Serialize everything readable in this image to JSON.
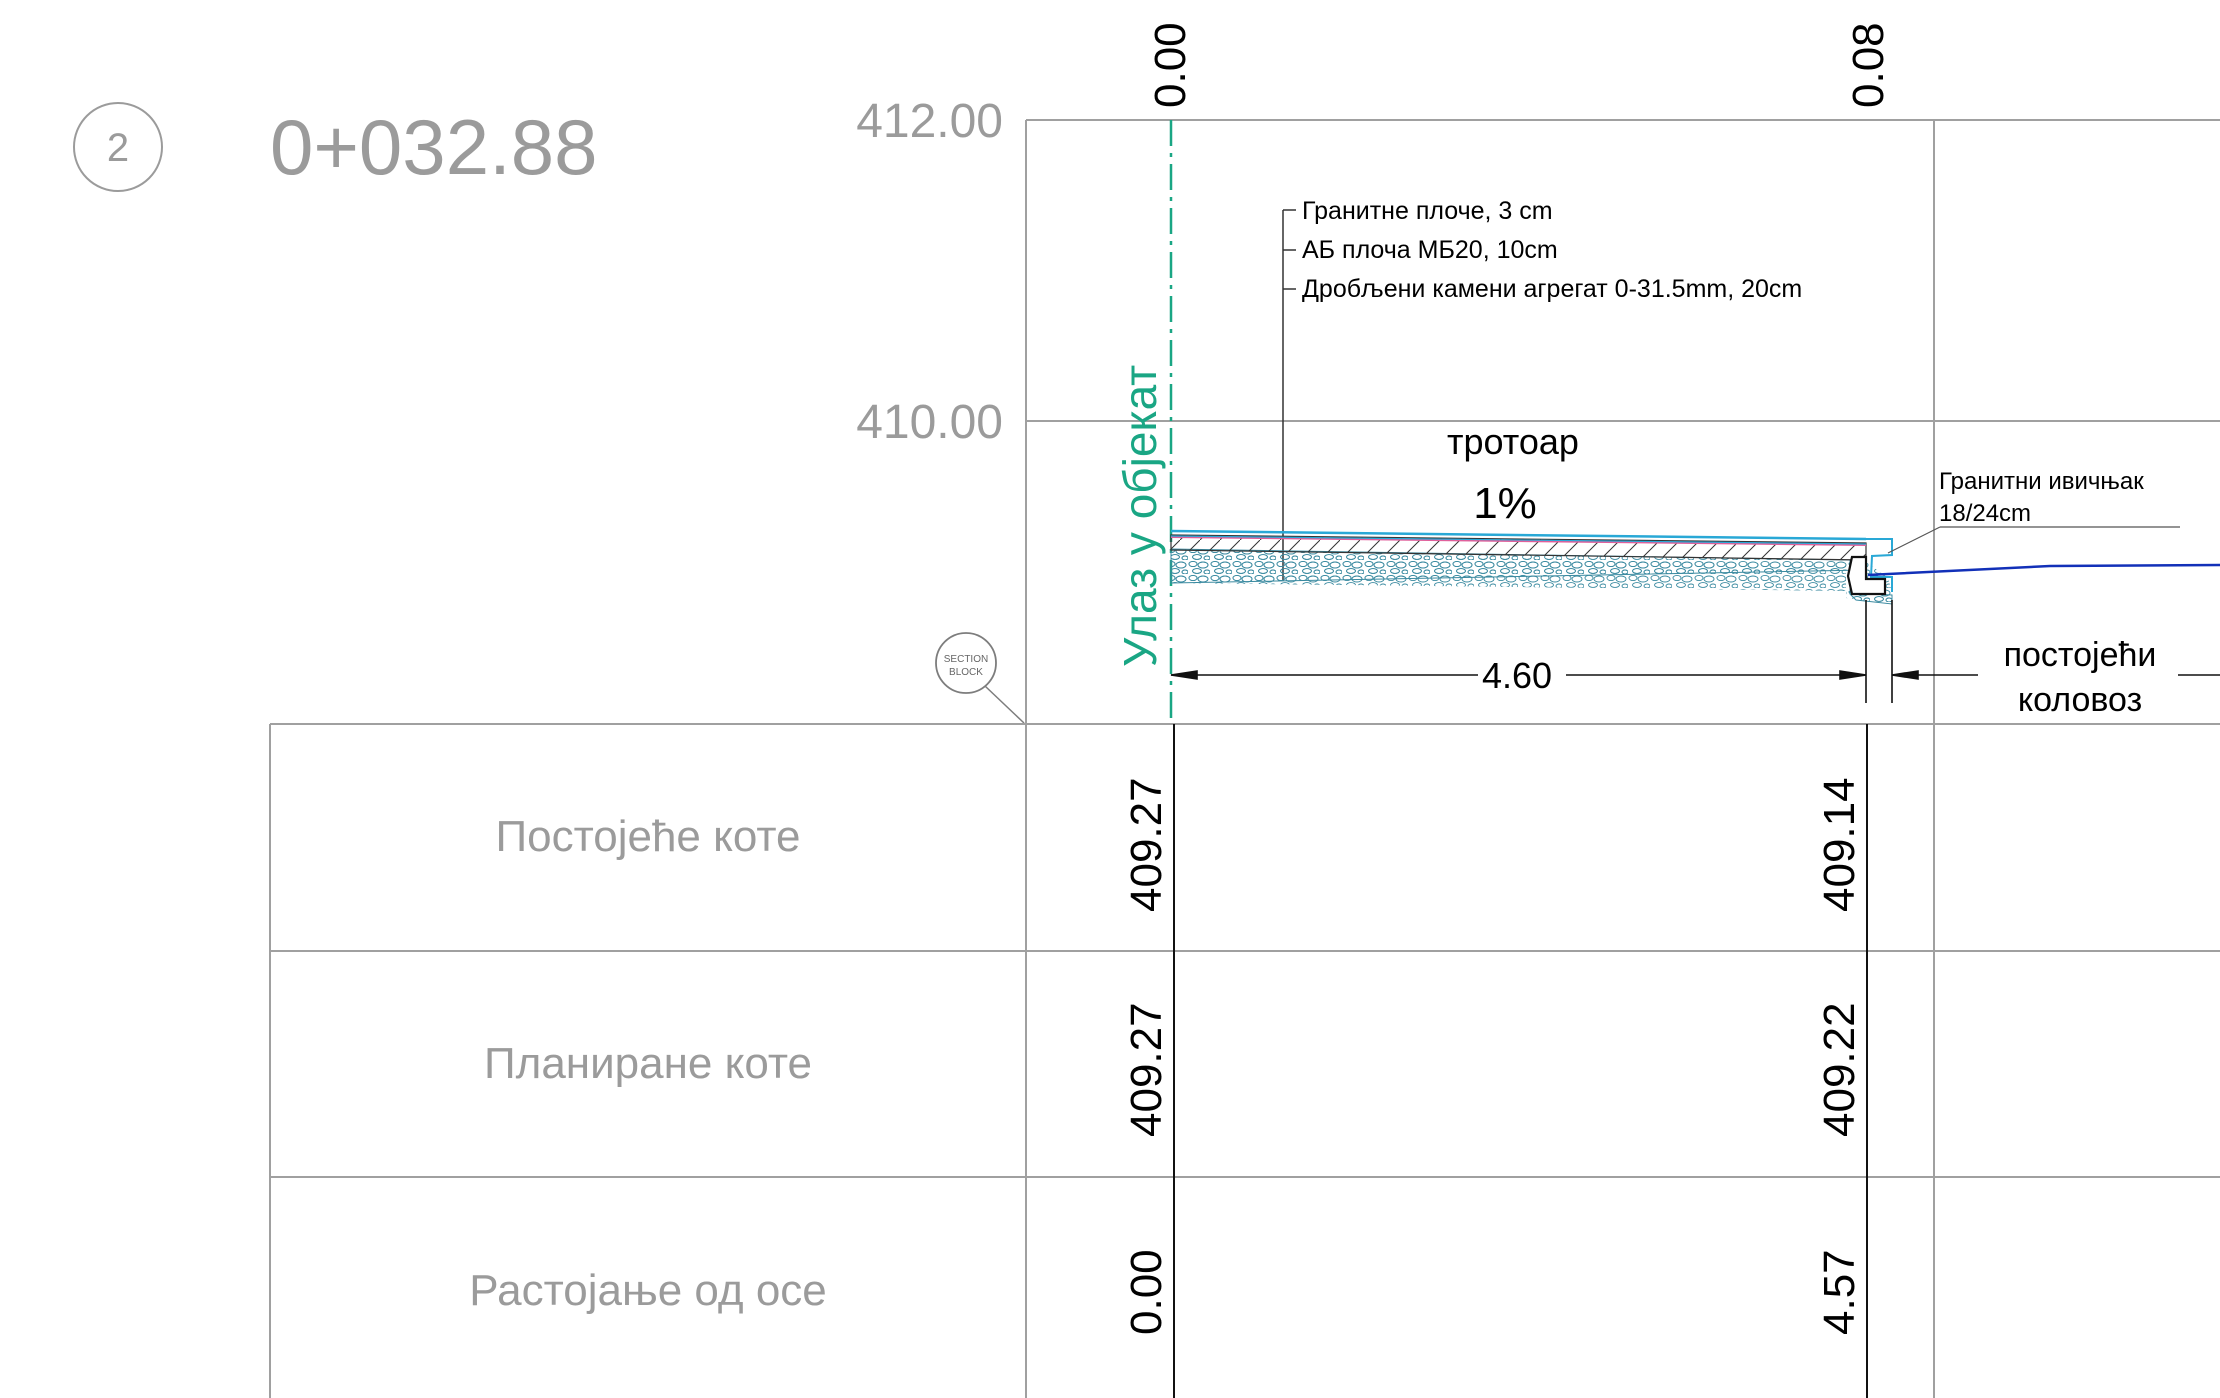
{
  "section": {
    "number": "2",
    "station": "0+032.88"
  },
  "stamp": {
    "line1": "SECTION",
    "line2": "BLOCK"
  },
  "elevation_labels": [
    "412.00",
    "410.00"
  ],
  "top_offsets": [
    "0.00",
    "0.08"
  ],
  "layers": [
    "Гранитне плоче, 3 cm",
    "АБ плоча МБ20, 10cm",
    "Дробљени камени агрегат 0-31.5mm,  20cm"
  ],
  "sidewalk": {
    "label": "тротоар",
    "slope": "1%",
    "width": "4.60"
  },
  "curb": {
    "line1": "Гранитни ивичњак",
    "line2": "18/24cm"
  },
  "road": {
    "line1": "постојећи",
    "line2": "коловоз"
  },
  "entrance_label": "Улаз у објекат",
  "colors": {
    "grid": "#a0a0a0",
    "label_grey": "#9b9b9b",
    "entrance": "#1aa684",
    "surface_cyan": "#29a8d6",
    "pink_layer": "#e0609b",
    "road_blue": "#1230b8"
  },
  "table": {
    "rows": [
      {
        "label": "Постојеће коте",
        "values": [
          "409.27",
          "409.14"
        ]
      },
      {
        "label": "Планиране коте",
        "values": [
          "409.27",
          "409.22"
        ]
      },
      {
        "label": "Растојање од осе",
        "values": [
          "0.00",
          "4.57"
        ]
      }
    ]
  }
}
